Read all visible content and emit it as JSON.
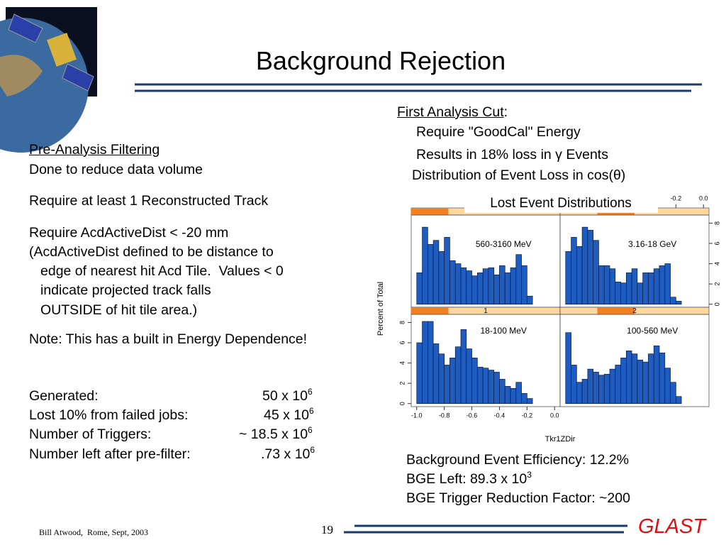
{
  "header": {
    "title": "Background Rejection"
  },
  "left": {
    "heading": "Pre-Analysis Filtering",
    "lines": [
      "Done to reduce data volume",
      "Require at least 1 Reconstructed Track",
      "Require AcdActiveDist < -20 mm",
      "(AcdActiveDist defined to be distance to",
      "edge of nearest hit Acd Tile.  Values < 0",
      "indicate projected track falls",
      "OUTSIDE of hit tile area.)",
      "Note: This has a built in Energy Dependence!"
    ]
  },
  "stats": [
    {
      "label": "Generated:",
      "value": "50 x 10",
      "exp": "6"
    },
    {
      "label": "Lost 10% from failed jobs:",
      "value": "45 x 10",
      "exp": "6"
    },
    {
      "label": "Number of Triggers:",
      "value": "~ 18.5 x 10",
      "exp": "6"
    },
    {
      "label": "Number left after pre-filter:",
      "value": ".73 x 10",
      "exp": "6"
    }
  ],
  "right": {
    "heading": "First Analysis Cut",
    "heading_tail": ":",
    "lines": [
      "Require \"GoodCal\" Energy",
      "Results in 18% loss in γ Events",
      "Distribution of Event Loss in cos(θ)"
    ]
  },
  "results": [
    {
      "text": "Background Event Efficiency: 12.2%"
    },
    {
      "text": "BGE Left: 89.3 x 10",
      "exp": "3"
    },
    {
      "text": "BGE Trigger Reduction Factor: ~200"
    }
  ],
  "chart_data": {
    "type": "histogram",
    "title": "Lost Event Distributions",
    "xlabel": "Tkr1ZDir",
    "ylabel": "Percent of Total",
    "xlim": [
      -1.04,
      0.04
    ],
    "ylim": [
      -0.3,
      8.8
    ],
    "xticks": [
      {
        "value": -1.0,
        "label": "-1.0"
      },
      {
        "value": -0.8,
        "label": "-0.8"
      },
      {
        "value": -0.6,
        "label": "-0.6"
      },
      {
        "value": -0.4,
        "label": "-0.4"
      },
      {
        "value": -0.2,
        "label": "-0.2"
      },
      {
        "value": 0,
        "label": "0.0"
      }
    ],
    "yticks": [
      0,
      2,
      4,
      6,
      8
    ],
    "bins": [
      -1.0,
      -0.96,
      -0.92,
      -0.88,
      -0.84,
      -0.8,
      -0.76,
      -0.72,
      -0.68,
      -0.64,
      -0.6,
      -0.56,
      -0.52,
      -0.48,
      -0.44,
      -0.4,
      -0.36,
      -0.32,
      -0.28,
      -0.24,
      -0.2,
      -0.16
    ],
    "panels": [
      {
        "label": "560-3160 MeV",
        "color": "#1f5cc0",
        "values": [
          3.1,
          7.6,
          5.9,
          6.3,
          5.2,
          6.6,
          4.3,
          4.0,
          3.6,
          3.3,
          2.8,
          3.1,
          3.5,
          3.6,
          2.9,
          3.8,
          3.1,
          3.6,
          4.9,
          3.8,
          0.8
        ]
      },
      {
        "label": "3.16-18 GeV",
        "color": "#1f5cc0",
        "values": [
          5.2,
          6.6,
          5.7,
          7.6,
          7.3,
          6.3,
          3.8,
          3.8,
          3.5,
          2.2,
          2.1,
          3.1,
          3.5,
          2.1,
          3.1,
          3.1,
          3.5,
          3.8,
          4.0,
          0.7,
          0.3
        ]
      },
      {
        "label": "18-100 MeV",
        "strip": "1",
        "color": "#1f5cc0",
        "values": [
          6.0,
          8.1,
          8.1,
          5.9,
          4.9,
          3.8,
          4.5,
          5.6,
          7.3,
          5.4,
          4.5,
          3.6,
          3.5,
          3.3,
          3.1,
          2.4,
          1.7,
          1.5,
          2.1,
          1.0,
          0.5
        ]
      },
      {
        "label": "100-560 MeV",
        "strip": "2",
        "color": "#1f5cc0",
        "values": [
          7.0,
          3.8,
          2.1,
          2.4,
          3.4,
          3.1,
          2.8,
          2.9,
          3.4,
          3.8,
          4.5,
          5.2,
          4.9,
          4.3,
          4.1,
          4.9,
          5.7,
          5.0,
          3.5,
          2.1,
          0.7
        ]
      }
    ]
  },
  "footer": {
    "author": "Bill Atwood,  Rome, Sept, 2003",
    "page": "19",
    "logo": "GLAST"
  }
}
